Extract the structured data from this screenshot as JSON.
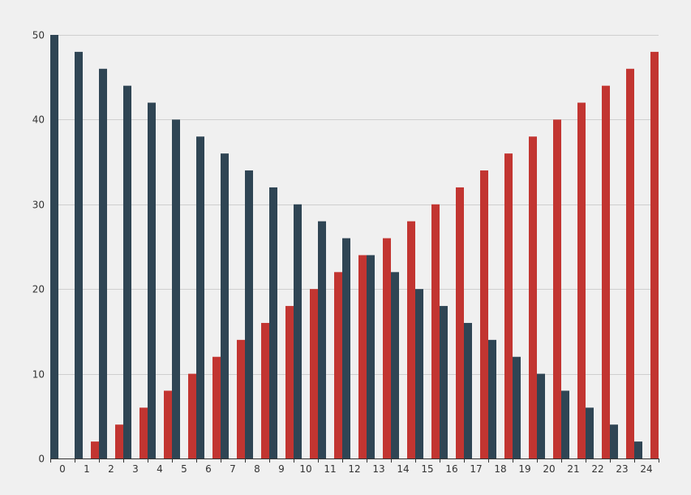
{
  "chart_data": {
    "type": "bar",
    "categories": [
      "0",
      "1",
      "2",
      "3",
      "4",
      "5",
      "6",
      "7",
      "8",
      "9",
      "10",
      "11",
      "12",
      "13",
      "14",
      "15",
      "16",
      "17",
      "18",
      "19",
      "20",
      "21",
      "22",
      "23",
      "24"
    ],
    "series": [
      {
        "color": "#2f4554",
        "values": [
          50,
          48,
          46,
          44,
          42,
          40,
          38,
          36,
          34,
          32,
          30,
          28,
          26,
          24,
          22,
          20,
          18,
          16,
          14,
          12,
          10,
          8,
          6,
          4,
          2
        ]
      },
      {
        "color": "#c23531",
        "values": [
          0,
          2,
          4,
          6,
          8,
          10,
          12,
          14,
          16,
          18,
          20,
          22,
          24,
          26,
          28,
          30,
          32,
          34,
          36,
          38,
          40,
          42,
          44,
          46,
          48
        ]
      }
    ],
    "ylim": [
      0,
      50
    ],
    "yticks": [
      0,
      10,
      20,
      30,
      40,
      50
    ],
    "grid": true,
    "background": "#f0f0f0"
  }
}
